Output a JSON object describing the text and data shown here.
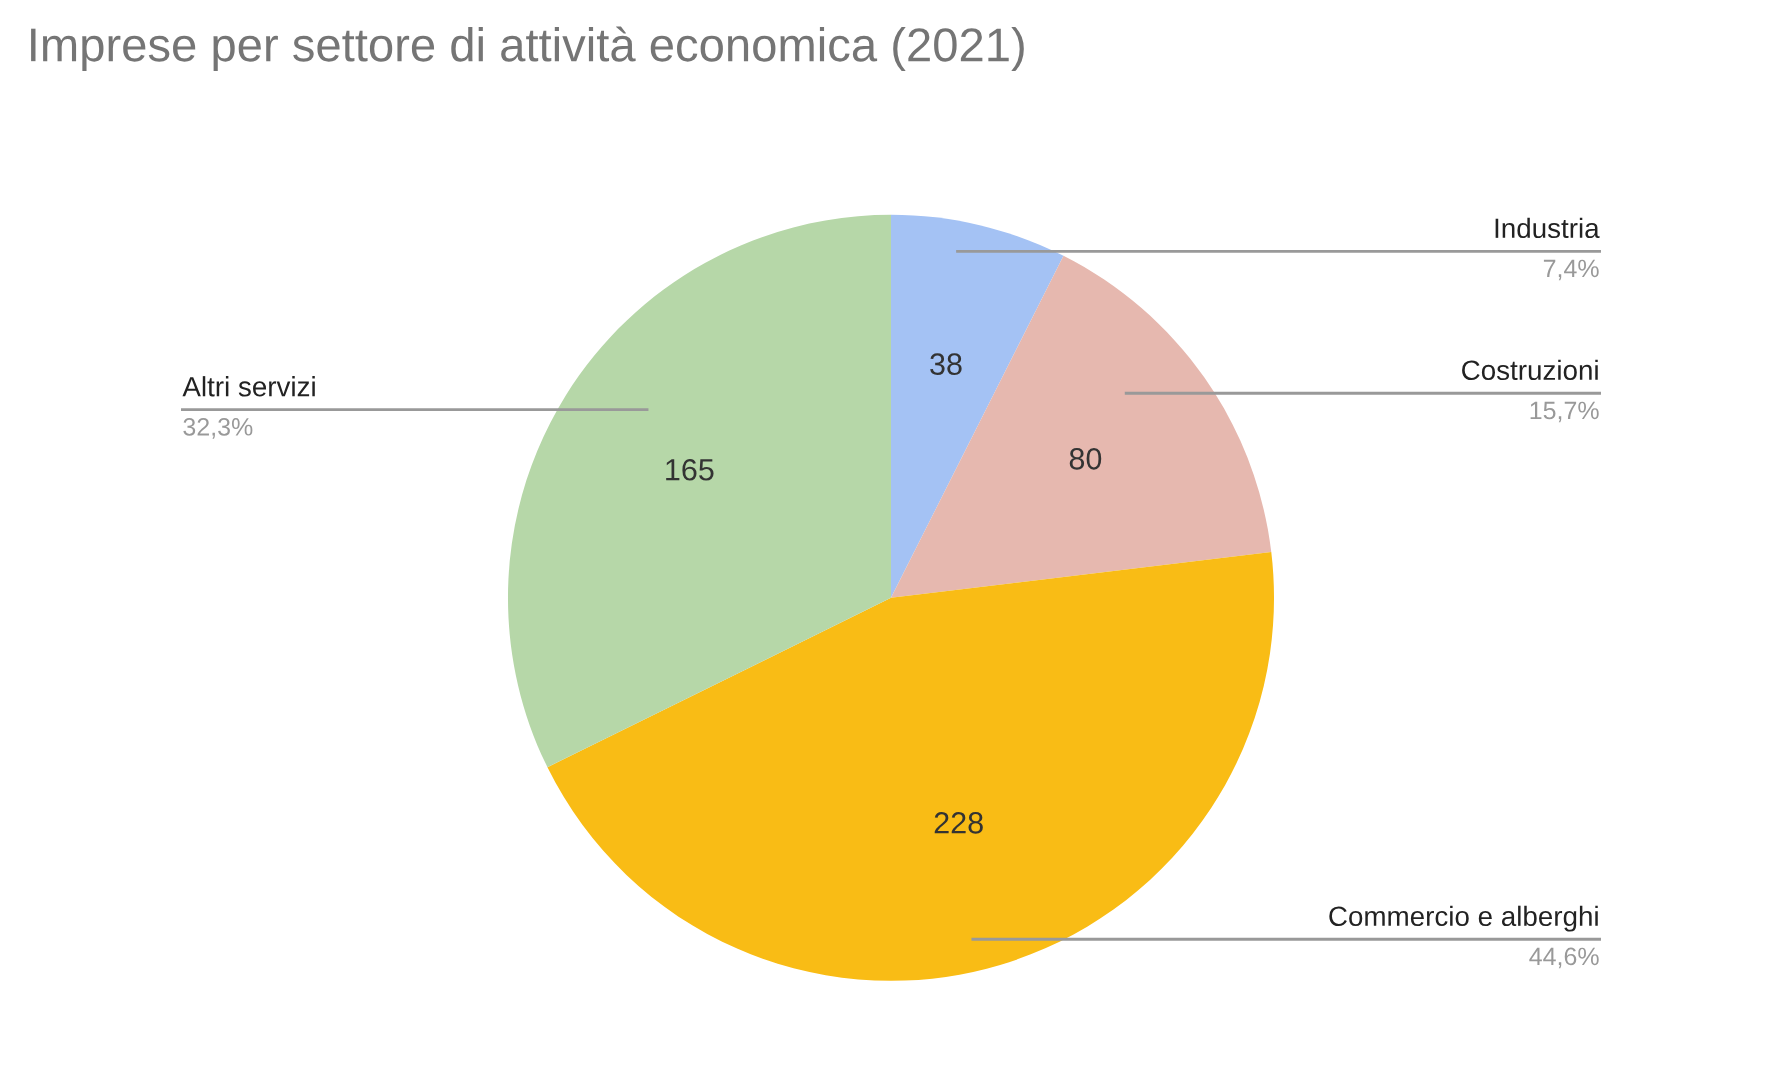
{
  "chart_data": {
    "type": "pie",
    "title": "Imprese per settore di attività economica (2021)",
    "categories": [
      "Industria",
      "Costruzioni",
      "Commercio e alberghi",
      "Altri servizi"
    ],
    "values": [
      38,
      80,
      228,
      165
    ],
    "colors": [
      "#a4c2f4",
      "#e6b8af",
      "#f9bc15",
      "#b6d7a8"
    ],
    "data_labels": true,
    "annotations": [
      "7,4%",
      "15,7%",
      "44,6%",
      "32,3%"
    ]
  }
}
